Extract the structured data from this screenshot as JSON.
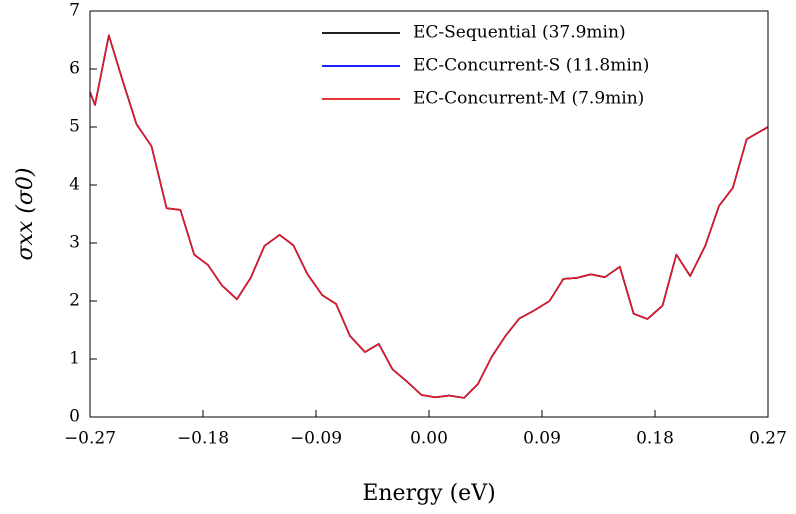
{
  "chart_data": {
    "type": "line",
    "x_label": "Energy (eV)",
    "y_label": "σxx (σ0)",
    "x": [
      -0.27,
      -0.266,
      -0.255,
      -0.244,
      -0.233,
      -0.221,
      -0.209,
      -0.198,
      -0.187,
      -0.176,
      -0.165,
      -0.153,
      -0.142,
      -0.131,
      -0.119,
      -0.108,
      -0.097,
      -0.085,
      -0.074,
      -0.063,
      -0.051,
      -0.04,
      -0.029,
      -0.018,
      -0.006,
      0.005,
      0.016,
      0.028,
      0.039,
      0.05,
      0.061,
      0.072,
      0.084,
      0.096,
      0.107,
      0.118,
      0.129,
      0.14,
      0.152,
      0.163,
      0.174,
      0.186,
      0.197,
      0.208,
      0.22,
      0.231,
      0.242,
      0.253,
      0.27
    ],
    "series": [
      {
        "name": "EC-Sequential (37.9min)",
        "color": "#000000",
        "values": [
          5.6,
          5.38,
          6.58,
          5.8,
          5.05,
          4.67,
          3.6,
          3.57,
          2.8,
          2.62,
          2.27,
          2.03,
          2.4,
          2.95,
          3.14,
          2.96,
          2.47,
          2.1,
          1.95,
          1.4,
          1.12,
          1.26,
          0.82,
          0.62,
          0.38,
          0.34,
          0.37,
          0.33,
          0.57,
          1.04,
          1.4,
          1.7,
          1.84,
          2.0,
          2.38,
          2.4,
          2.46,
          2.41,
          2.59,
          1.78,
          1.69,
          1.92,
          2.8,
          2.43,
          2.95,
          3.64,
          3.95,
          4.79,
          5.0
        ]
      },
      {
        "name": "EC-Concurrent-S (11.8min)",
        "color": "#0000ff",
        "values": [
          5.6,
          5.38,
          6.58,
          5.8,
          5.05,
          4.67,
          3.6,
          3.57,
          2.8,
          2.62,
          2.27,
          2.03,
          2.4,
          2.95,
          3.14,
          2.96,
          2.47,
          2.1,
          1.95,
          1.4,
          1.12,
          1.26,
          0.82,
          0.62,
          0.38,
          0.34,
          0.37,
          0.33,
          0.57,
          1.04,
          1.4,
          1.7,
          1.84,
          2.0,
          2.38,
          2.4,
          2.46,
          2.41,
          2.59,
          1.78,
          1.69,
          1.92,
          2.8,
          2.43,
          2.95,
          3.64,
          3.95,
          4.79,
          5.0
        ]
      },
      {
        "name": "EC-Concurrent-M (7.9min)",
        "color": "#e41a1c",
        "values": [
          5.6,
          5.38,
          6.58,
          5.8,
          5.05,
          4.67,
          3.6,
          3.57,
          2.8,
          2.62,
          2.27,
          2.03,
          2.4,
          2.95,
          3.14,
          2.96,
          2.47,
          2.1,
          1.95,
          1.4,
          1.12,
          1.26,
          0.82,
          0.62,
          0.38,
          0.34,
          0.37,
          0.33,
          0.57,
          1.04,
          1.4,
          1.7,
          1.84,
          2.0,
          2.38,
          2.4,
          2.46,
          2.41,
          2.59,
          1.78,
          1.69,
          1.92,
          2.8,
          2.43,
          2.95,
          3.64,
          3.95,
          4.79,
          5.0
        ]
      }
    ],
    "xlim": [
      -0.27,
      0.27
    ],
    "xticks": [
      {
        "value": -0.27,
        "label": "−0.27"
      },
      {
        "value": -0.18,
        "label": "−0.18"
      },
      {
        "value": -0.09,
        "label": "−0.09"
      },
      {
        "value": 0,
        "label": "0.00"
      },
      {
        "value": 0.09,
        "label": "0.09"
      },
      {
        "value": 0.18,
        "label": "0.18"
      },
      {
        "value": 0.27,
        "label": "0.27"
      }
    ],
    "ylim": [
      0,
      7
    ],
    "yticks": [
      0,
      1,
      2,
      3,
      4,
      5,
      6,
      7
    ],
    "legend": "upper right",
    "grid": false
  }
}
